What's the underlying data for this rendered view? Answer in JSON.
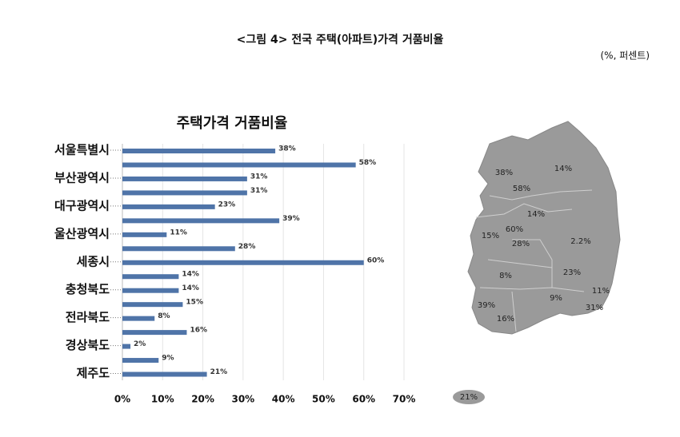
{
  "header": {
    "title": "<그림 4> 전국 주택(아파트)가격 거품비율",
    "unit": "(%, 퍼센트)"
  },
  "chart_data": {
    "type": "bar",
    "orientation": "horizontal",
    "title": "주택가격 거품비율",
    "categories": [
      "서울특별시",
      null,
      "부산광역시",
      null,
      "대구광역시",
      null,
      "울산광역시",
      null,
      "세종시",
      null,
      "충청북도",
      null,
      "전라북도",
      null,
      "경상북도",
      null,
      "제주도"
    ],
    "values": [
      38,
      58,
      31,
      31,
      23,
      39,
      11,
      28,
      60,
      14,
      14,
      15,
      8,
      16,
      2,
      9,
      21
    ],
    "value_labels": [
      "38%",
      "58%",
      "31%",
      "31%",
      "23%",
      "39%",
      "11%",
      "28%",
      "60%",
      "14%",
      "14%",
      "15%",
      "8%",
      "16%",
      "2%",
      "9%",
      "21%"
    ],
    "color": "#4f74a8",
    "xlim": [
      0,
      70
    ],
    "xticks": [
      {
        "value": 0,
        "label": "0%"
      },
      {
        "value": 10,
        "label": "10%"
      },
      {
        "value": 20,
        "label": "20%"
      },
      {
        "value": 30,
        "label": "30%"
      },
      {
        "value": 40,
        "label": "40%"
      },
      {
        "value": 50,
        "label": "50%"
      },
      {
        "value": 60,
        "label": "60%"
      },
      {
        "value": 70,
        "label": "70%"
      }
    ],
    "grid": true
  },
  "map": {
    "labels": [
      "38%",
      "14%",
      "58%",
      "14%",
      "60%",
      "15%",
      "28%",
      "2.2%",
      "23%",
      "8%",
      "11%",
      "9%",
      "31%",
      "39%",
      "16%",
      "21%"
    ]
  }
}
